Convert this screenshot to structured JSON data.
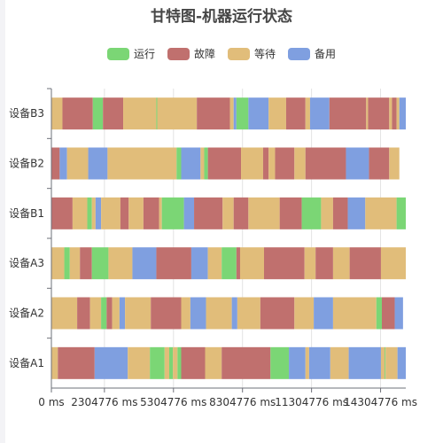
{
  "chart_data": {
    "type": "gantt",
    "title": "甘特图-机器运行状态",
    "legend": [
      {
        "name": "运行",
        "color": "#7bd675"
      },
      {
        "name": "故障",
        "color": "#c0706e"
      },
      {
        "name": "等待",
        "color": "#e1bd7a"
      },
      {
        "name": "备用",
        "color": "#7f9fe0"
      }
    ],
    "categories": [
      "设备A1",
      "设备A2",
      "设备A3",
      "设备B1",
      "设备B2",
      "设备B3"
    ],
    "x_ticks": [
      0,
      2304776,
      5304776,
      8304776,
      11304776,
      14304776
    ],
    "x_tick_labels": [
      "0 ms",
      "2304776 ms",
      "5304776 ms",
      "8304776 ms",
      "11304776 ms",
      "14304776 ms"
    ],
    "x_range": [
      0,
      15400000
    ],
    "grid": "vertical",
    "rows": {
      "设备A1": [
        [
          0,
          "等待",
          0.7
        ],
        [
          0.7,
          "故障",
          4.0
        ],
        [
          4.7,
          "备用",
          3.6
        ],
        [
          8.3,
          "等待",
          2.4
        ],
        [
          10.7,
          "运行",
          1.6
        ],
        [
          12.3,
          "等待",
          0.5
        ],
        [
          12.8,
          "运行",
          0.4
        ],
        [
          13.2,
          "等待",
          0.5
        ],
        [
          13.7,
          "运行",
          0.4
        ],
        [
          14.1,
          "故障",
          2.6
        ],
        [
          16.7,
          "等待",
          1.8
        ],
        [
          18.5,
          "故障",
          5.3
        ],
        [
          23.8,
          "运行",
          2.0
        ],
        [
          25.8,
          "备用",
          1.8
        ],
        [
          27.6,
          "等待",
          0.4
        ],
        [
          28.0,
          "备用",
          2.3
        ],
        [
          30.3,
          "等待",
          2.0
        ],
        [
          32.3,
          "备用",
          3.5
        ],
        [
          35.8,
          "等待",
          0.4
        ],
        [
          36.2,
          "运行",
          0.1
        ],
        [
          36.3,
          "等待",
          1.3
        ],
        [
          37.6,
          "备用",
          1.2
        ],
        [
          38.8,
          "故障",
          0.8
        ]
      ],
      "设备A2": [
        [
          0,
          "等待",
          2.8
        ],
        [
          2.8,
          "故障",
          1.4
        ],
        [
          4.2,
          "等待",
          1.2
        ],
        [
          5.4,
          "运行",
          0.6
        ],
        [
          6.0,
          "故障",
          0.6
        ],
        [
          6.6,
          "等待",
          0.8
        ],
        [
          7.4,
          "备用",
          0.6
        ],
        [
          8.0,
          "等待",
          2.8
        ],
        [
          10.8,
          "故障",
          3.3
        ],
        [
          14.1,
          "等待",
          1.0
        ],
        [
          15.1,
          "备用",
          1.7
        ],
        [
          16.8,
          "等待",
          2.8
        ],
        [
          19.6,
          "备用",
          0.6
        ],
        [
          20.2,
          "等待",
          2.5
        ],
        [
          22.7,
          "故障",
          3.7
        ],
        [
          26.4,
          "等待",
          2.1
        ],
        [
          28.5,
          "备用",
          2.1
        ],
        [
          30.6,
          "等待",
          4.7
        ],
        [
          35.3,
          "运行",
          0.6
        ],
        [
          35.9,
          "故障",
          1.4
        ],
        [
          37.3,
          "备用",
          0.9
        ]
      ],
      "设备A3": [
        [
          0,
          "等待",
          1.4
        ],
        [
          1.4,
          "运行",
          0.6
        ],
        [
          2.0,
          "等待",
          1.1
        ],
        [
          3.1,
          "故障",
          1.3
        ],
        [
          4.4,
          "运行",
          1.8
        ],
        [
          6.2,
          "等待",
          2.6
        ],
        [
          8.8,
          "备用",
          2.6
        ],
        [
          11.4,
          "故障",
          3.8
        ],
        [
          15.2,
          "备用",
          1.8
        ],
        [
          17.0,
          "等待",
          1.5
        ],
        [
          18.5,
          "运行",
          1.6
        ],
        [
          20.1,
          "故障",
          0.4
        ],
        [
          20.5,
          "等待",
          2.6
        ],
        [
          23.1,
          "故障",
          4.4
        ],
        [
          27.5,
          "等待",
          1.2
        ],
        [
          28.7,
          "故障",
          1.9
        ],
        [
          30.6,
          "等待",
          1.8
        ],
        [
          32.4,
          "故障",
          3.4
        ],
        [
          35.8,
          "等待",
          3.2
        ]
      ],
      "设备B1": [
        [
          0,
          "故障",
          2.3
        ],
        [
          2.3,
          "等待",
          1.6
        ],
        [
          3.9,
          "运行",
          0.5
        ],
        [
          4.4,
          "等待",
          0.4
        ],
        [
          4.8,
          "备用",
          0.6
        ],
        [
          5.4,
          "等待",
          2.1
        ],
        [
          7.5,
          "故障",
          0.9
        ],
        [
          8.4,
          "等待",
          1.6
        ],
        [
          10.0,
          "故障",
          1.7
        ],
        [
          11.7,
          "等待",
          0.3
        ],
        [
          12.0,
          "运行",
          2.4
        ],
        [
          14.4,
          "备用",
          1.1
        ],
        [
          15.5,
          "故障",
          3.1
        ],
        [
          18.6,
          "等待",
          1.2
        ],
        [
          19.8,
          "故障",
          1.6
        ],
        [
          21.4,
          "等待",
          3.4
        ],
        [
          24.8,
          "故障",
          2.4
        ],
        [
          27.2,
          "运行",
          2.1
        ],
        [
          29.3,
          "等待",
          1.3
        ],
        [
          30.6,
          "故障",
          1.6
        ],
        [
          32.2,
          "备用",
          1.9
        ],
        [
          34.1,
          "等待",
          3.4
        ],
        [
          37.5,
          "运行",
          1.2
        ]
      ],
      "设备B2": [
        [
          0,
          "故障",
          0.9
        ],
        [
          0.9,
          "备用",
          0.8
        ],
        [
          1.7,
          "等待",
          2.3
        ],
        [
          4.0,
          "备用",
          2.1
        ],
        [
          6.1,
          "等待",
          7.5
        ],
        [
          13.6,
          "运行",
          0.5
        ],
        [
          14.1,
          "备用",
          2.1
        ],
        [
          16.2,
          "等待",
          0.4
        ],
        [
          16.6,
          "运行",
          0.4
        ],
        [
          17.0,
          "故障",
          3.6
        ],
        [
          20.6,
          "等待",
          2.4
        ],
        [
          23.0,
          "故障",
          0.6
        ],
        [
          23.6,
          "等待",
          0.7
        ],
        [
          24.3,
          "故障",
          2.1
        ],
        [
          26.4,
          "等待",
          1.2
        ],
        [
          27.6,
          "故障",
          4.4
        ],
        [
          32.0,
          "备用",
          2.5
        ],
        [
          34.5,
          "故障",
          2.2
        ],
        [
          36.7,
          "等待",
          1.1
        ]
      ],
      "设备B3": [
        [
          0,
          "等待",
          1.2
        ],
        [
          1.2,
          "故障",
          3.3
        ],
        [
          4.5,
          "运行",
          1.1
        ],
        [
          5.6,
          "故障",
          2.2
        ],
        [
          7.8,
          "等待",
          3.6
        ],
        [
          11.4,
          "运行",
          0.1
        ],
        [
          11.5,
          "等待",
          4.3
        ],
        [
          15.8,
          "故障",
          3.6
        ],
        [
          19.4,
          "等待",
          0.4
        ],
        [
          19.8,
          "备用",
          0.3
        ],
        [
          20.1,
          "运行",
          1.3
        ],
        [
          21.4,
          "备用",
          2.2
        ],
        [
          23.6,
          "等待",
          1.9
        ],
        [
          25.5,
          "故障",
          2.1
        ],
        [
          27.6,
          "等待",
          0.5
        ],
        [
          28.1,
          "备用",
          2.1
        ],
        [
          30.2,
          "故障",
          4.0
        ],
        [
          34.2,
          "等待",
          0.2
        ],
        [
          34.4,
          "故障",
          2.3
        ],
        [
          36.7,
          "等待",
          0.3
        ],
        [
          37.0,
          "故障",
          0.5
        ],
        [
          37.5,
          "等待",
          0.3
        ],
        [
          37.8,
          "备用",
          0.8
        ]
      ]
    }
  }
}
